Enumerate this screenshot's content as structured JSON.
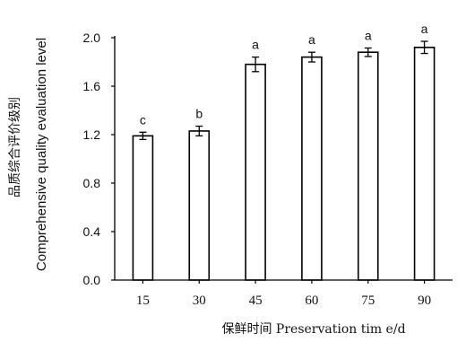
{
  "chart_data": {
    "type": "bar",
    "categories": [
      "15",
      "30",
      "45",
      "60",
      "75",
      "90"
    ],
    "values": [
      1.19,
      1.23,
      1.78,
      1.84,
      1.88,
      1.92
    ],
    "errors": [
      0.03,
      0.04,
      0.06,
      0.04,
      0.035,
      0.05
    ],
    "significance": [
      "c",
      "b",
      "a",
      "a",
      "a",
      "a"
    ],
    "xlabel": "保鲜时间 Preservation tim e/d",
    "ylabel_cn": "品质综合评价级别",
    "ylabel_en": "Comprehensive quality evaluation level",
    "ylim": [
      0,
      2.0
    ],
    "yticks": [
      "0.0",
      "0.4",
      "0.8",
      "1.2",
      "1.6",
      "2.0"
    ],
    "grid": false,
    "bar_fill": "#ffffff",
    "bar_stroke": "#000000"
  }
}
